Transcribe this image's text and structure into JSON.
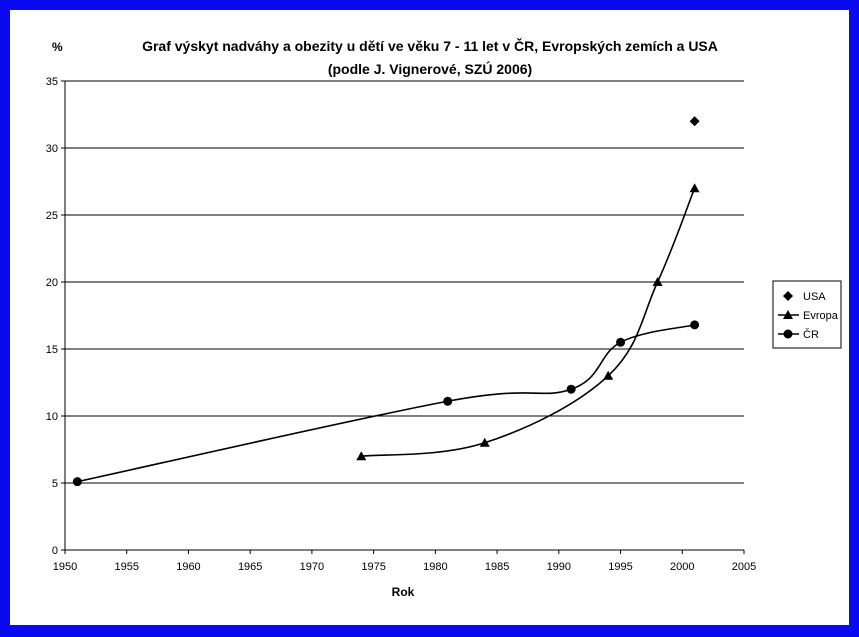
{
  "colors": {
    "border": "#0a0af0",
    "background": "#ffffff",
    "line": "#000000",
    "gridline": "#000000"
  },
  "chart_data": {
    "type": "line",
    "title": "Graf  výskyt nadváhy a obezity u dětí ve věku 7 - 11 let v ČR, Evropských zemích a USA",
    "subtitle": "(podle J. Vignerové, SZÚ 2006)",
    "xlabel": "Rok",
    "ylabel": "%",
    "xlim": [
      1950,
      2005
    ],
    "ylim": [
      0,
      35
    ],
    "x_ticks": [
      1950,
      1955,
      1960,
      1965,
      1970,
      1975,
      1980,
      1985,
      1990,
      1995,
      2000,
      2005
    ],
    "y_ticks": [
      0,
      5,
      10,
      15,
      20,
      25,
      30,
      35
    ],
    "grid": "horizontal",
    "legend_position": "right",
    "series": [
      {
        "name": "USA",
        "marker": "diamond",
        "line": false,
        "points": [
          [
            2001,
            32
          ]
        ]
      },
      {
        "name": "Evropa",
        "marker": "triangle",
        "line": true,
        "points": [
          [
            1974,
            7
          ],
          [
            1984,
            8
          ],
          [
            1994,
            13
          ],
          [
            1998,
            20
          ],
          [
            2001,
            27
          ]
        ]
      },
      {
        "name": "ČR",
        "marker": "circle",
        "line": true,
        "points": [
          [
            1951,
            5.1
          ],
          [
            1981,
            11.1
          ],
          [
            1991,
            12
          ],
          [
            1995,
            15.5
          ],
          [
            2001,
            16.8
          ]
        ]
      }
    ]
  }
}
